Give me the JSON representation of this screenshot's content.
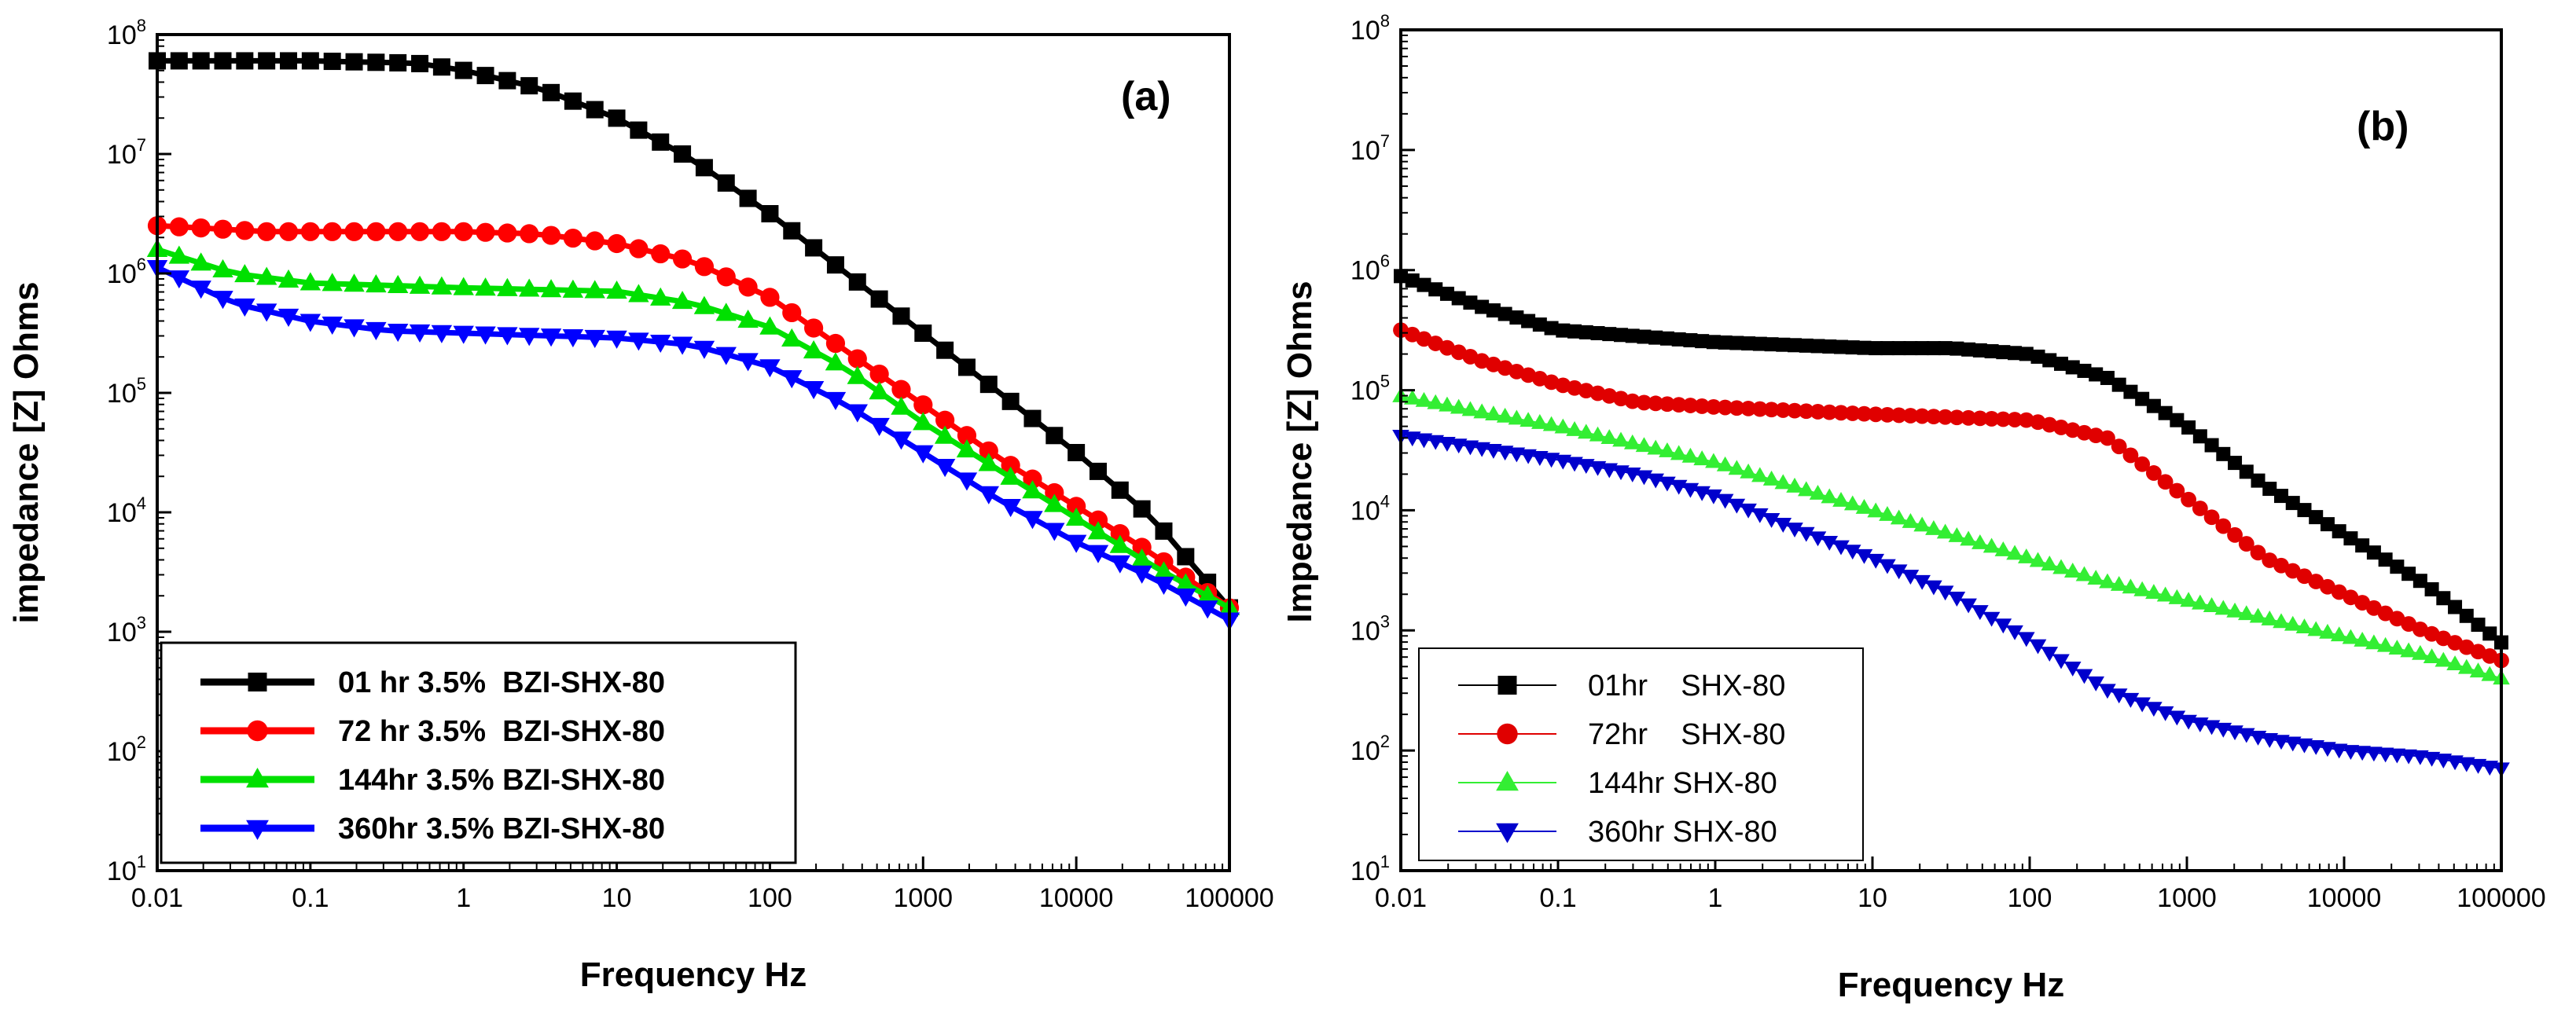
{
  "chart_data": [
    {
      "type": "line",
      "panel_label": "(a)",
      "xlabel": "Frequency Hz",
      "ylabel": "impedance [Z] Ohms",
      "xscale": "log",
      "yscale": "log",
      "xlim": [
        0.01,
        100000
      ],
      "ylim": [
        10,
        100000000
      ],
      "x_ticks": [
        "0.01",
        "0.1",
        "1",
        "10",
        "100",
        "1000",
        "10000",
        "100000"
      ],
      "y_ticks": [
        {
          "base": "10",
          "exp": "1"
        },
        {
          "base": "10",
          "exp": "2"
        },
        {
          "base": "10",
          "exp": "3"
        },
        {
          "base": "10",
          "exp": "4"
        },
        {
          "base": "10",
          "exp": "5"
        },
        {
          "base": "10",
          "exp": "6"
        },
        {
          "base": "10",
          "exp": "7"
        },
        {
          "base": "10",
          "exp": "8"
        }
      ],
      "grid": false,
      "legend_position": "bottom-left",
      "series": [
        {
          "name": "01 hr 3.5%  BZI-SHX-80",
          "color": "#000000",
          "marker": "square",
          "anchors_log": [
            [
              -2,
              7.78
            ],
            [
              -1,
              7.78
            ],
            [
              -0.3,
              7.76
            ],
            [
              0,
              7.7
            ],
            [
              0.5,
              7.55
            ],
            [
              1,
              7.3
            ],
            [
              1.5,
              6.95
            ],
            [
              2,
              6.5
            ],
            [
              2.5,
              6.0
            ],
            [
              3,
              5.5
            ],
            [
              3.5,
              5.0
            ],
            [
              4,
              4.5
            ],
            [
              4.5,
              3.95
            ],
            [
              5,
              3.2
            ]
          ]
        },
        {
          "name": "72 hr 3.5%  BZI-SHX-80",
          "color": "#ff0000",
          "marker": "circle",
          "anchors_log": [
            [
              -2,
              6.4
            ],
            [
              -1.7,
              6.38
            ],
            [
              -1.3,
              6.35
            ],
            [
              -1,
              6.35
            ],
            [
              0,
              6.35
            ],
            [
              0.5,
              6.33
            ],
            [
              1,
              6.25
            ],
            [
              1.5,
              6.1
            ],
            [
              2,
              5.8
            ],
            [
              2.5,
              5.35
            ],
            [
              3,
              4.9
            ],
            [
              3.5,
              4.45
            ],
            [
              4,
              4.05
            ],
            [
              4.5,
              3.65
            ],
            [
              5,
              3.2
            ]
          ]
        },
        {
          "name": "144hr 3.5% BZI-SHX-80",
          "color": "#00e000",
          "marker": "triangle-up",
          "anchors_log": [
            [
              -2,
              6.2
            ],
            [
              -1.5,
              6.0
            ],
            [
              -1,
              5.92
            ],
            [
              0,
              5.88
            ],
            [
              1,
              5.85
            ],
            [
              1.5,
              5.75
            ],
            [
              2,
              5.55
            ],
            [
              2.5,
              5.2
            ],
            [
              3,
              4.75
            ],
            [
              3.5,
              4.35
            ],
            [
              4,
              3.95
            ],
            [
              4.5,
              3.55
            ],
            [
              5,
              3.2
            ]
          ]
        },
        {
          "name": "360hr 3.5% BZI-SHX-80",
          "color": "#0000ff",
          "marker": "triangle-down",
          "anchors_log": [
            [
              -2,
              6.05
            ],
            [
              -1.5,
              5.75
            ],
            [
              -1,
              5.6
            ],
            [
              -0.5,
              5.52
            ],
            [
              0,
              5.5
            ],
            [
              1,
              5.46
            ],
            [
              1.5,
              5.4
            ],
            [
              2,
              5.22
            ],
            [
              2.5,
              4.9
            ],
            [
              3,
              4.5
            ],
            [
              3.5,
              4.1
            ],
            [
              4,
              3.75
            ],
            [
              4.5,
              3.45
            ],
            [
              5,
              3.1
            ]
          ]
        }
      ]
    },
    {
      "type": "line",
      "panel_label": "(b)",
      "xlabel": "Frequency Hz",
      "ylabel": "Impedance [Z] Ohms",
      "xscale": "log",
      "yscale": "log",
      "xlim": [
        0.01,
        100000
      ],
      "ylim": [
        10,
        100000000
      ],
      "x_ticks": [
        "0.01",
        "0.1",
        "1",
        "10",
        "100",
        "1000",
        "10000",
        "100000"
      ],
      "y_ticks": [
        {
          "base": "10",
          "exp": "1"
        },
        {
          "base": "10",
          "exp": "2"
        },
        {
          "base": "10",
          "exp": "3"
        },
        {
          "base": "10",
          "exp": "4"
        },
        {
          "base": "10",
          "exp": "5"
        },
        {
          "base": "10",
          "exp": "6"
        },
        {
          "base": "10",
          "exp": "7"
        },
        {
          "base": "10",
          "exp": "8"
        }
      ],
      "grid": false,
      "legend_position": "bottom-left",
      "series": [
        {
          "name": "01hr    SHX-80",
          "color": "#000000",
          "marker": "square",
          "anchors_log": [
            [
              -2,
              5.95
            ],
            [
              -1.5,
              5.7
            ],
            [
              -1,
              5.5
            ],
            [
              0,
              5.4
            ],
            [
              1,
              5.35
            ],
            [
              1.5,
              5.35
            ],
            [
              2,
              5.3
            ],
            [
              2.5,
              5.1
            ],
            [
              3,
              4.7
            ],
            [
              3.5,
              4.2
            ],
            [
              4,
              3.8
            ],
            [
              4.5,
              3.4
            ],
            [
              5,
              2.9
            ]
          ]
        },
        {
          "name": "72hr    SHX-80",
          "color": "#e00000",
          "marker": "circle",
          "anchors_log": [
            [
              -2,
              5.5
            ],
            [
              -1.5,
              5.25
            ],
            [
              -1,
              5.05
            ],
            [
              -0.5,
              4.9
            ],
            [
              0,
              4.86
            ],
            [
              1,
              4.8
            ],
            [
              2,
              4.75
            ],
            [
              2.5,
              4.6
            ],
            [
              3,
              4.1
            ],
            [
              3.5,
              3.6
            ],
            [
              4,
              3.3
            ],
            [
              4.5,
              3.0
            ],
            [
              5,
              2.75
            ]
          ]
        },
        {
          "name": "144hr SHX-80",
          "color": "#33ee33",
          "marker": "triangle-up",
          "anchors_log": [
            [
              -2,
              4.95
            ],
            [
              -1.5,
              4.82
            ],
            [
              -1,
              4.7
            ],
            [
              -0.5,
              4.55
            ],
            [
              0,
              4.4
            ],
            [
              0.5,
              4.2
            ],
            [
              1,
              4.0
            ],
            [
              1.5,
              3.8
            ],
            [
              2,
              3.6
            ],
            [
              2.5,
              3.4
            ],
            [
              3,
              3.25
            ],
            [
              3.5,
              3.1
            ],
            [
              4,
              2.95
            ],
            [
              4.5,
              2.8
            ],
            [
              5,
              2.6
            ]
          ]
        },
        {
          "name": "360hr SHX-80",
          "color": "#0000cc",
          "marker": "triangle-down",
          "anchors_log": [
            [
              -2,
              4.62
            ],
            [
              -1.5,
              4.52
            ],
            [
              -1,
              4.42
            ],
            [
              -0.5,
              4.3
            ],
            [
              0,
              4.12
            ],
            [
              0.5,
              3.85
            ],
            [
              1,
              3.6
            ],
            [
              1.5,
              3.3
            ],
            [
              2,
              2.92
            ],
            [
              2.5,
              2.5
            ],
            [
              3,
              2.25
            ],
            [
              3.5,
              2.1
            ],
            [
              4,
              2.0
            ],
            [
              4.5,
              1.95
            ],
            [
              5,
              1.85
            ]
          ]
        }
      ]
    }
  ]
}
